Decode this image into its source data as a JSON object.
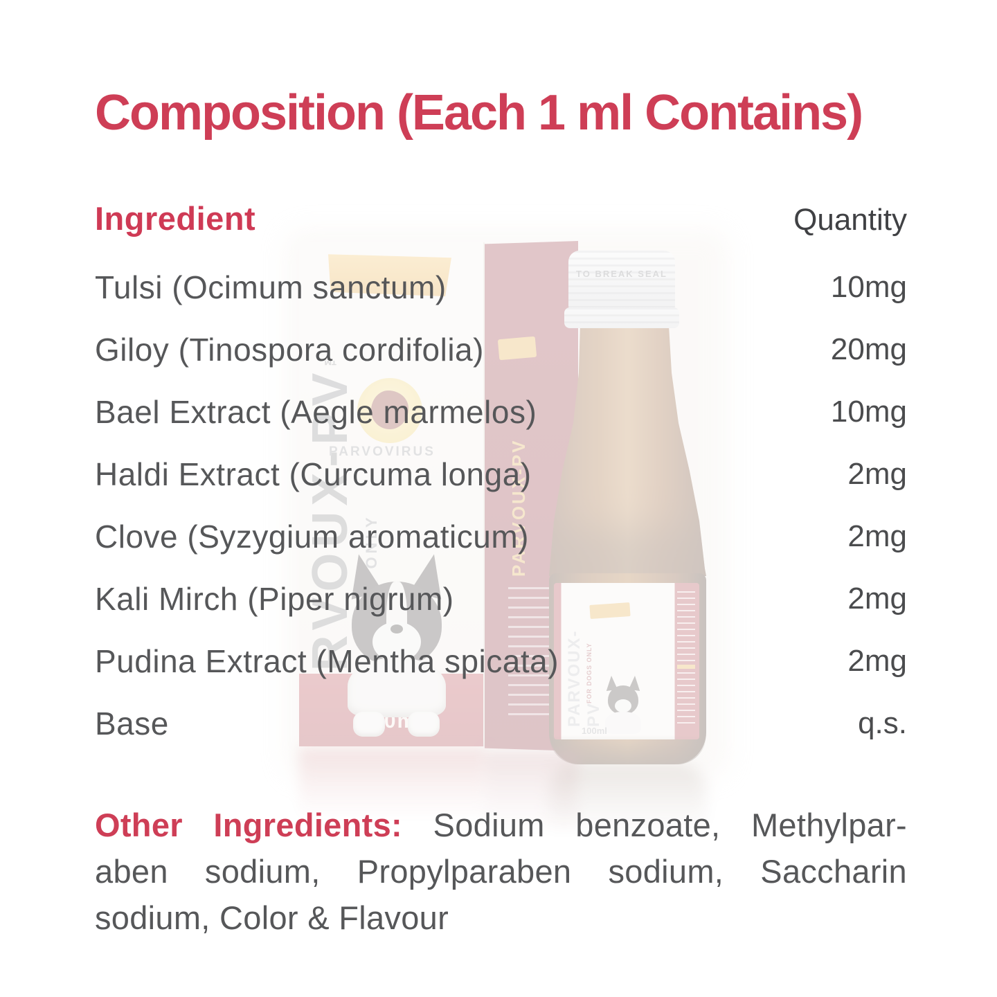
{
  "title": "Composition (Each 1 ml Contains)",
  "table": {
    "header": {
      "ingredient": "Ingredient",
      "quantity": "Quantity"
    },
    "rows": [
      {
        "name": "Tulsi (Ocimum sanctum)",
        "qty": "10mg"
      },
      {
        "name": "Giloy (Tinospora cordifolia)",
        "qty": "20mg"
      },
      {
        "name": "Bael Extract (Aegle marmelos)",
        "qty": "10mg"
      },
      {
        "name": "Haldi Extract (Curcuma longa)",
        "qty": "2mg"
      },
      {
        "name": "Clove (Syzygium aromaticum)",
        "qty": "2mg"
      },
      {
        "name": "Kali Mirch (Piper nigrum)",
        "qty": "2mg"
      },
      {
        "name": "Pudina Extract (Mentha spicata)",
        "qty": "2mg"
      },
      {
        "name": "Base",
        "qty": "q.s."
      }
    ]
  },
  "other_ingredients": {
    "label": "Other Ingredients:",
    "line1_rest": "Sodium benzoate, Methylpar-",
    "line2": "aben sodium, Propylparaben sodium, Saccharin",
    "line3": "sodium, Color & Flavour"
  },
  "watermark": {
    "brand": "PARVOUX-PV",
    "trademark": "™",
    "tagline": "FOR DOGS ONLY",
    "virus_label": "PARVOVIRUS",
    "volume": "100ml",
    "cap_text": "TO BREAK SEAL"
  },
  "colors": {
    "accent": "#ce3e56",
    "body_text": "#565759",
    "carton_red": "#a92b34",
    "badge_gold": "#e2a233"
  }
}
